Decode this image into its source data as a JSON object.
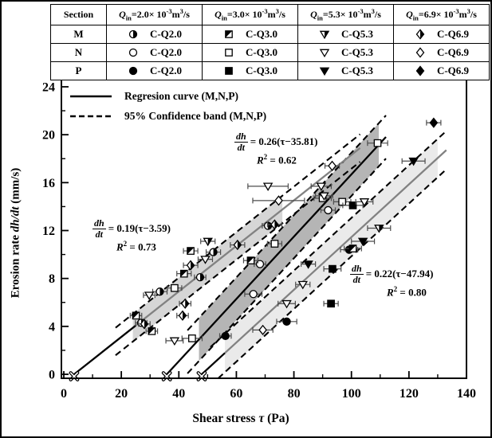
{
  "figure": {
    "background": "#ffffff",
    "frame_color": "#000000"
  },
  "table": {
    "header_section": "Section",
    "flows": [
      {
        "q": "Q",
        "sub": "in",
        "mid": "=2.0× 10",
        "sup": "-3",
        "unit": "m",
        "unit_sup": "3",
        "tail": "/s"
      },
      {
        "q": "Q",
        "sub": "in",
        "mid": "=3.0× 10",
        "sup": "-3",
        "unit": "m",
        "unit_sup": "3",
        "tail": "/s"
      },
      {
        "q": "Q",
        "sub": "in",
        "mid": "=5.3× 10",
        "sup": "-3",
        "unit": "m",
        "unit_sup": "3",
        "tail": "/s"
      },
      {
        "q": "Q",
        "sub": "in",
        "mid": "=6.9× 10",
        "sup": "-3",
        "unit": "m",
        "unit_sup": "3",
        "tail": "/s"
      }
    ],
    "rows": [
      {
        "section": "M",
        "cells": [
          {
            "marker": "circle-half",
            "label": "C-Q2.0"
          },
          {
            "marker": "square-half",
            "label": "C-Q3.0"
          },
          {
            "marker": "tri-half",
            "label": "C-Q5.3"
          },
          {
            "marker": "diamond-half",
            "label": "C-Q6.9"
          }
        ]
      },
      {
        "section": "N",
        "cells": [
          {
            "marker": "circle-open",
            "label": "C-Q2.0"
          },
          {
            "marker": "square-open",
            "label": "C-Q3.0"
          },
          {
            "marker": "tri-open",
            "label": "C-Q5.3"
          },
          {
            "marker": "diamond-open",
            "label": "C-Q6.9"
          }
        ]
      },
      {
        "section": "P",
        "cells": [
          {
            "marker": "circle-filled",
            "label": "C-Q2.0"
          },
          {
            "marker": "square-filled",
            "label": "C-Q3.0"
          },
          {
            "marker": "tri-filled",
            "label": "C-Q5.3"
          },
          {
            "marker": "diamond-filled",
            "label": "C-Q6.9"
          }
        ]
      }
    ]
  },
  "legend": {
    "items": [
      {
        "style": "solid",
        "label": "Regresion curve (M,N,P)"
      },
      {
        "style": "dashed",
        "label": "95% Confidence band (M,N,P)"
      }
    ]
  },
  "annotations": [
    {
      "num": "dh",
      "den": "dt",
      "eq": "= 0.19(τ−3.59)",
      "r2_base": "R",
      "r2_sup": "2",
      "r2_tail": " = 0.73"
    },
    {
      "num": "dh",
      "den": "dt",
      "eq": "= 0.26(τ−35.81)",
      "r2_base": "R",
      "r2_sup": "2",
      "r2_tail": " = 0.62"
    },
    {
      "num": "dh",
      "den": "dt",
      "eq": "= 0.22(τ−47.94)",
      "r2_base": "R",
      "r2_sup": "2",
      "r2_tail": " = 0.80"
    }
  ],
  "axes": {
    "x": {
      "pre": "Shear stress ",
      "sym": "τ",
      "post": " (Pa)"
    },
    "y": {
      "pre": "Erosion rate ",
      "sym": "dh/dt",
      "post": " (mm/s)"
    }
  },
  "chart_data": {
    "type": "scatter",
    "xlabel": "Shear stress τ (Pa)",
    "ylabel": "Erosion rate dh/dt (mm/s)",
    "xlim": [
      0,
      140
    ],
    "ylim": [
      0,
      24
    ],
    "xticks": [
      0,
      20,
      40,
      60,
      80,
      100,
      120,
      140
    ],
    "xminor": [
      10,
      30,
      50,
      70,
      90,
      110,
      130
    ],
    "yticks": [
      0,
      4,
      8,
      12,
      16,
      20,
      24
    ],
    "yminor": [
      2,
      6,
      10,
      14,
      18,
      22
    ],
    "grid": false,
    "series": [
      {
        "section": "M",
        "label": "C-Q2.0",
        "marker": "circle-half",
        "points": [
          [
            26.9,
            4.3,
            2
          ],
          [
            33.4,
            6.9,
            2.5
          ],
          [
            47.4,
            8.1,
            2
          ],
          [
            52,
            10.2,
            2.5
          ],
          [
            71,
            12.4,
            2
          ]
        ]
      },
      {
        "section": "N",
        "label": "C-Q2.0",
        "marker": "circle-open",
        "points": [
          [
            65.9,
            6.7,
            3
          ],
          [
            68.2,
            9.2,
            2
          ],
          [
            91.9,
            13.7,
            2.5
          ]
        ]
      },
      {
        "section": "P",
        "label": "C-Q2.0",
        "marker": "circle-filled",
        "points": [
          [
            56.2,
            3.2,
            2
          ],
          [
            77.5,
            4.4,
            3.5
          ],
          [
            99.2,
            10.4,
            3
          ]
        ]
      },
      {
        "section": "M",
        "label": "C-Q3.0",
        "marker": "square-half",
        "points": [
          [
            25.1,
            4.9,
            2
          ],
          [
            30.6,
            3.6,
            2
          ],
          [
            41.8,
            8.4,
            2.5
          ],
          [
            44.1,
            10.3,
            2.5
          ],
          [
            65,
            9.5,
            2.5
          ],
          [
            100.5,
            10.5,
            3
          ]
        ]
      },
      {
        "section": "N",
        "label": "C-Q3.0",
        "marker": "square-open",
        "points": [
          [
            38.5,
            7.2,
            2.5
          ],
          [
            44.6,
            3,
            3.5
          ],
          [
            73.3,
            10.9,
            2.5
          ],
          [
            90,
            14.7,
            3
          ],
          [
            96.8,
            14.4,
            3
          ],
          [
            109.1,
            19.3,
            3.5
          ]
        ]
      },
      {
        "section": "P",
        "label": "C-Q3.0",
        "marker": "square-filled",
        "points": [
          [
            92.9,
            5.9,
            2.5
          ],
          [
            93.4,
            8.8,
            3
          ],
          [
            100.5,
            14.1,
            3.5
          ]
        ]
      },
      {
        "section": "M",
        "label": "C-Q5.3",
        "marker": "tri-half",
        "points": [
          [
            50.1,
            11.1,
            2.5
          ],
          [
            109.6,
            12.2,
            4
          ]
        ]
      },
      {
        "section": "N",
        "label": "C-Q5.3",
        "marker": "tri-open",
        "points": [
          [
            29.7,
            6.6,
            2
          ],
          [
            38.5,
            2.8,
            3
          ],
          [
            49.2,
            9.6,
            2.5
          ],
          [
            71,
            15.7,
            7
          ],
          [
            77.5,
            5.9,
            3
          ],
          [
            83.1,
            7.5,
            2.5
          ],
          [
            89.5,
            15.7,
            3.5
          ],
          [
            90.5,
            14.9,
            3
          ],
          [
            104.5,
            14.4,
            3
          ]
        ]
      },
      {
        "section": "P",
        "label": "C-Q5.3",
        "marker": "tri-filled",
        "points": [
          [
            85,
            9.2,
            2.5
          ],
          [
            104,
            11.1,
            4
          ],
          [
            121.6,
            17.8,
            4
          ]
        ]
      },
      {
        "section": "M",
        "label": "C-Q6.9",
        "marker": "diamond-half",
        "points": [
          [
            28,
            4.2,
            2
          ],
          [
            41.3,
            4.9,
            2
          ],
          [
            42.2,
            5.9,
            2
          ],
          [
            44.1,
            9.1,
            2.5
          ],
          [
            60.4,
            10.8,
            2.5
          ],
          [
            73.3,
            12.5,
            2.5
          ]
        ]
      },
      {
        "section": "N",
        "label": "C-Q6.9",
        "marker": "diamond-open",
        "points": [
          [
            69.2,
            3.7,
            3.5
          ],
          [
            74.7,
            14.5,
            9
          ],
          [
            93.3,
            17.4,
            2.5
          ]
        ]
      },
      {
        "section": "P",
        "label": "C-Q6.9",
        "marker": "diamond-filled",
        "points": [
          [
            128.6,
            21,
            2.5
          ]
        ]
      }
    ],
    "zero_markers": [
      3.59,
      35.81,
      47.94
    ],
    "regressions": [
      {
        "name": "left",
        "slope": 0.19,
        "tau_c": 3.59,
        "r2": 0.73,
        "tau_range": [
          3.59,
          103
        ],
        "color_segments": [
          {
            "range": [
              3.59,
              25
            ],
            "color": "#000000"
          },
          {
            "range": [
              25,
              103
            ],
            "color": "#828282"
          }
        ]
      },
      {
        "name": "middle",
        "slope": 0.26,
        "tau_c": 35.81,
        "r2": 0.62,
        "tau_range": [
          35.81,
          112
        ],
        "color_segments": [
          {
            "range": [
              35.81,
              112
            ],
            "color": "#000000"
          }
        ]
      },
      {
        "name": "right",
        "slope": 0.22,
        "tau_c": 47.94,
        "r2": 0.8,
        "tau_range": [
          47.94,
          133
        ],
        "color_segments": [
          {
            "range": [
              47.94,
              56
            ],
            "color": "#000000"
          },
          {
            "range": [
              56,
              133
            ],
            "color": "#828282"
          }
        ]
      }
    ],
    "confidence_bands": [
      {
        "regression": "left",
        "half_width": 1.15,
        "tau_range": [
          18,
          103
        ],
        "fill_tau_range": [
          24,
          76
        ],
        "fill": "#d6d6d6"
      },
      {
        "regression": "middle",
        "half_width": 1.8,
        "tau_range": [
          43,
          112
        ],
        "fill_tau_range": [
          47,
          109.5
        ],
        "fill": "#b5b5b5"
      },
      {
        "regression": "right",
        "half_width": 1.6,
        "tau_range": [
          51,
          133
        ],
        "fill_tau_range": [
          56,
          130
        ],
        "fill": "#eaeaea"
      }
    ]
  }
}
